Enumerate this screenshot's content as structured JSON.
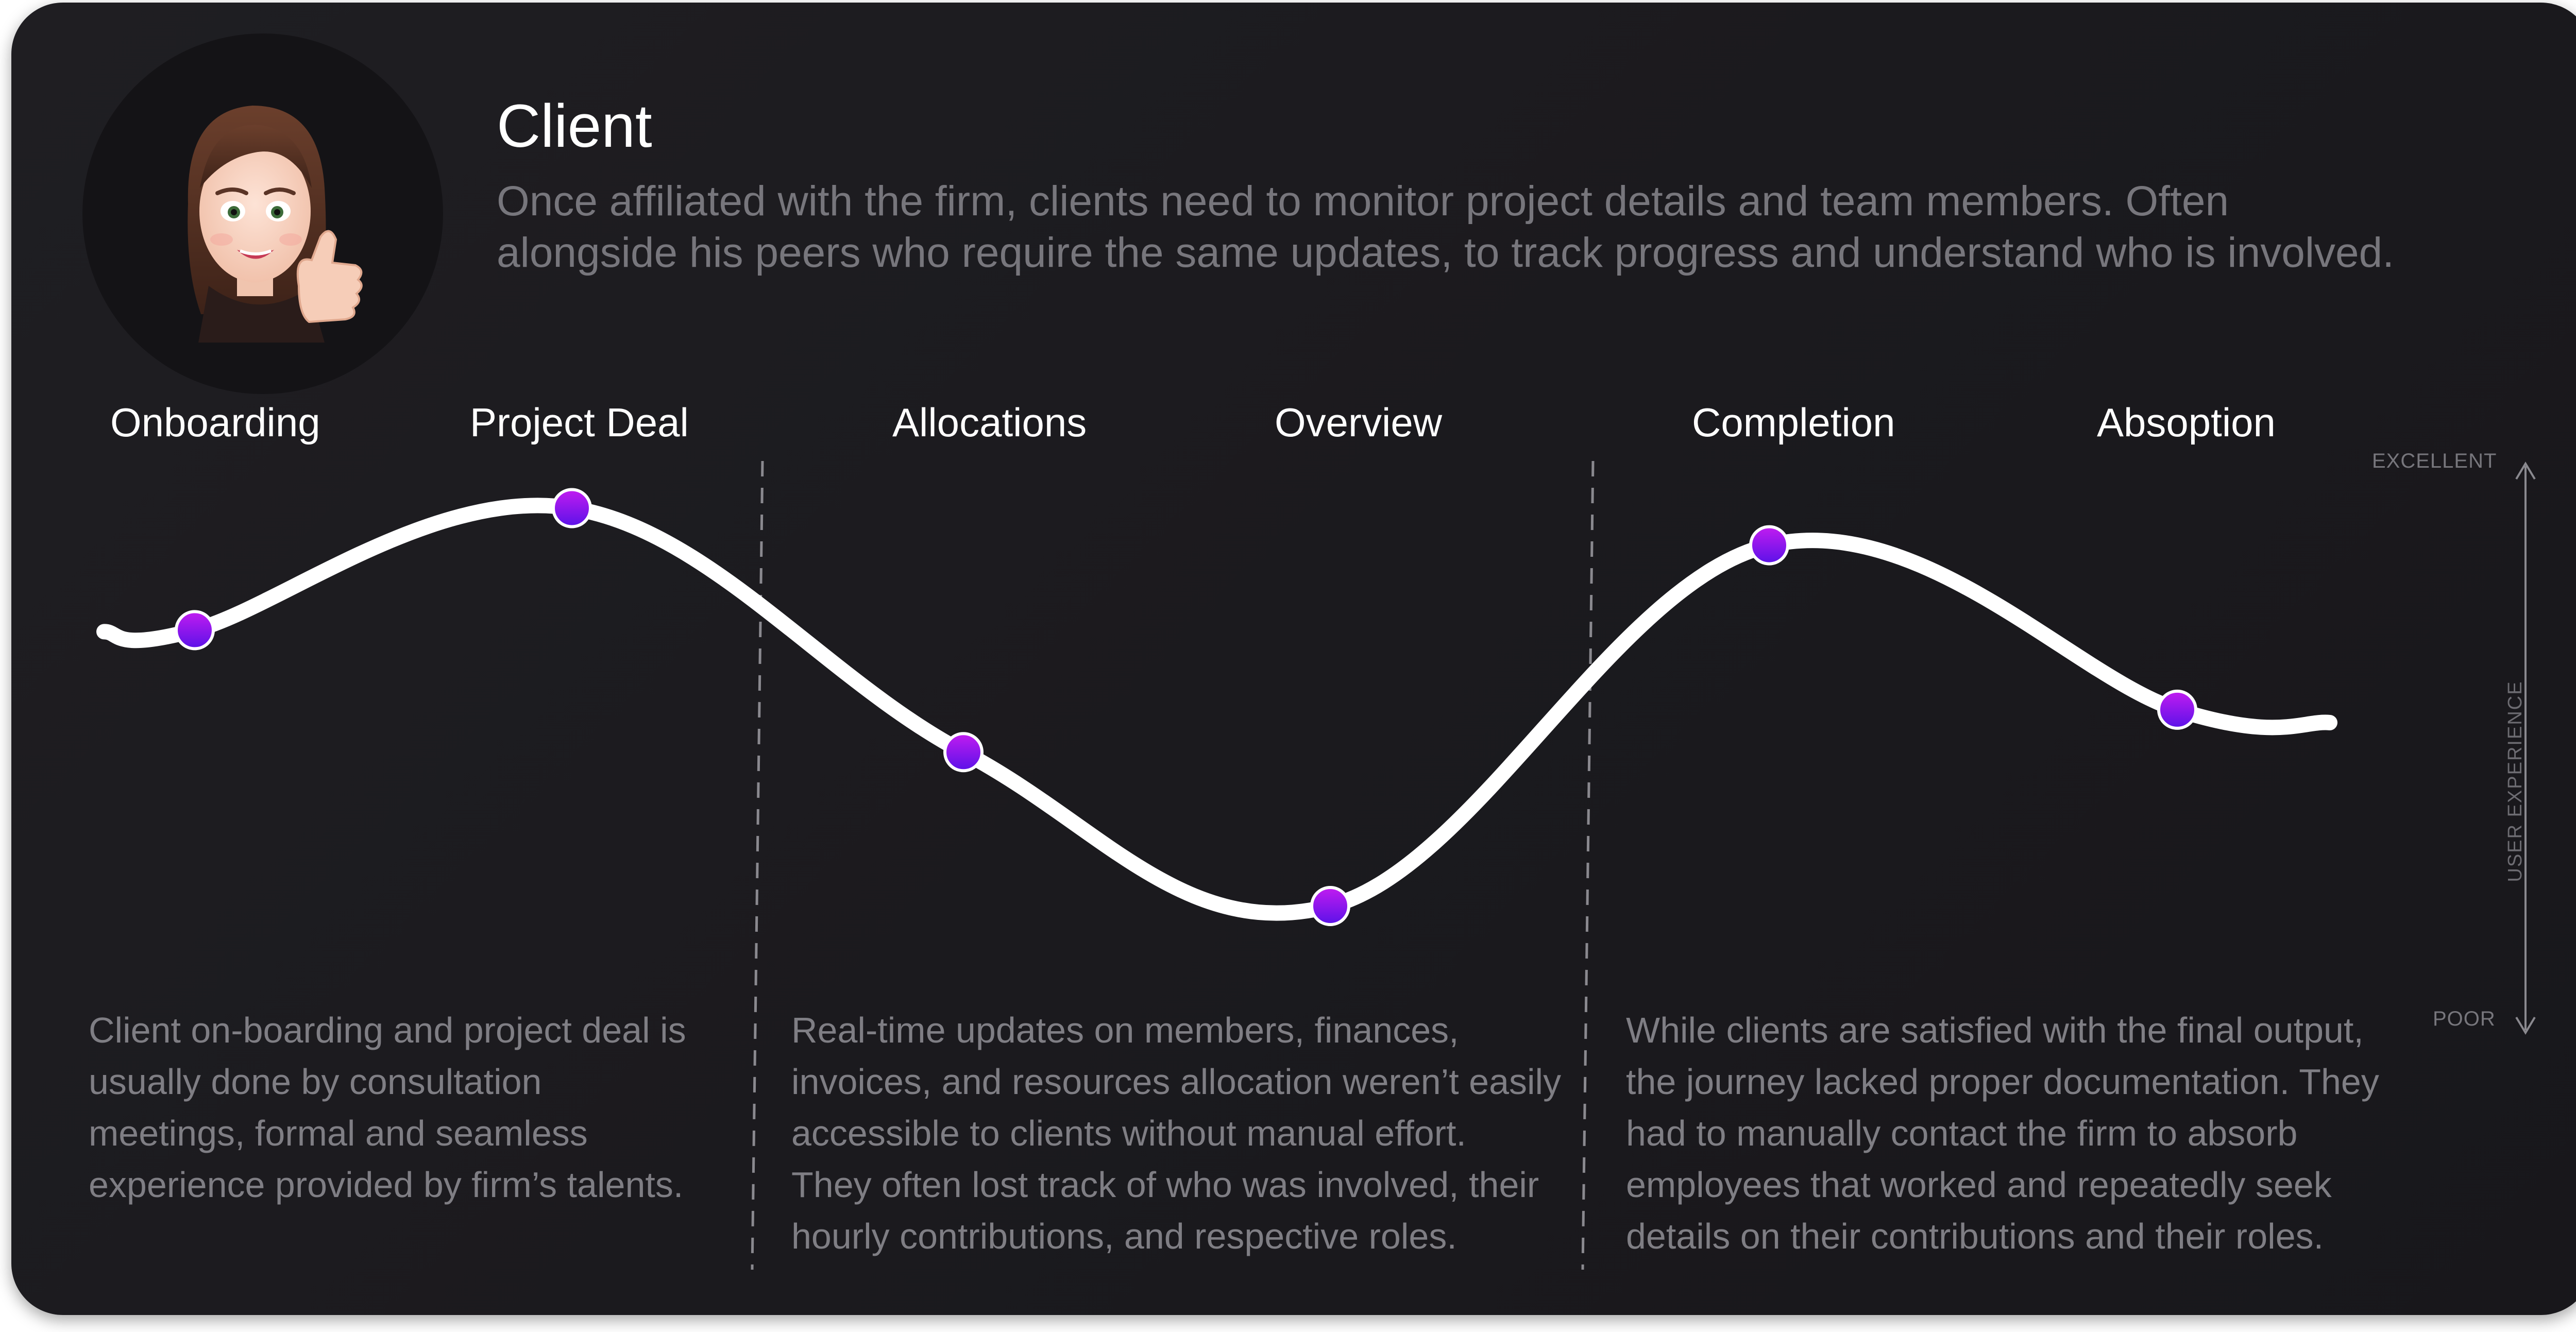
{
  "persona": {
    "title": "Client",
    "description_lines": [
      "Once affiliated with the firm, clients need to monitor project details and team members. Often",
      "alongside his peers who require the same updates, to track progress and understand who is involved."
    ]
  },
  "stages": [
    "Onboarding",
    "Project Deal",
    "Allocations",
    "Overview",
    "Completion",
    "Absoption"
  ],
  "phases": [
    {
      "lines": [
        "Client on-boarding and project deal is",
        "usually done by consultation",
        "meetings, formal and seamless",
        "experience provided by firm’s talents."
      ]
    },
    {
      "lines": [
        "Real-time updates on members, finances,",
        "invoices, and resources allocation weren’t easily",
        "accessible to clients without manual effort.",
        "They often lost track of who was involved, their",
        "hourly contributions, and respective roles."
      ]
    },
    {
      "lines": [
        "While clients are satisfied with the final output,",
        "the journey lacked proper documentation. They",
        "had to manually contact the firm to absorb",
        "employees that worked and repeatedly seek",
        "details on their contributions and their roles."
      ]
    }
  ],
  "axis": {
    "top_label": "EXCELLENT",
    "bottom_label": "POOR",
    "title": "USER EXPERIENCE"
  },
  "chart_data": {
    "type": "line",
    "categories": [
      "Onboarding",
      "Project Deal",
      "Allocations",
      "Overview",
      "Completion",
      "Absoption"
    ],
    "values": [
      0.72,
      0.95,
      0.49,
      0.2,
      0.88,
      0.57
    ],
    "ylim": [
      0,
      1
    ],
    "colors": {
      "curve": "#ffffff",
      "marker_top": "#c21cf0",
      "marker_bottom": "#5a12e8"
    }
  }
}
